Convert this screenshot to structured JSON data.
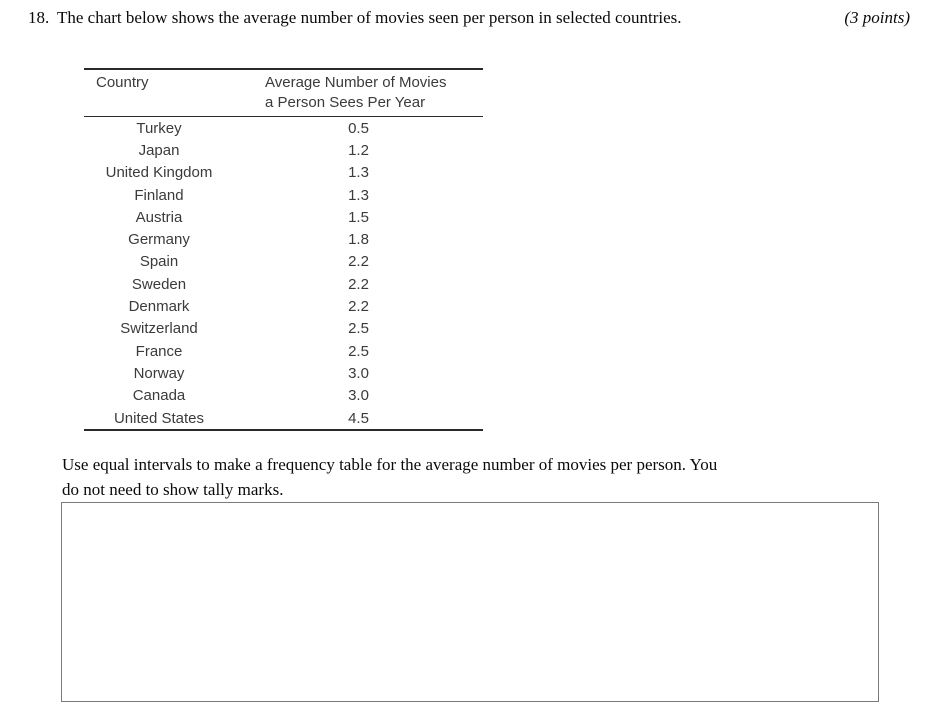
{
  "question": {
    "number": "18.",
    "text": "The chart below shows the average number of movies seen per person in selected countries.",
    "points_label": "(3 points)"
  },
  "movie_table": {
    "col1_header": "Country",
    "col2_header_line1": "Average Number of Movies",
    "col2_header_line2": "a Person Sees Per Year",
    "rows": [
      {
        "country": "Turkey",
        "value": "0.5"
      },
      {
        "country": "Japan",
        "value": "1.2"
      },
      {
        "country": "United Kingdom",
        "value": "1.3"
      },
      {
        "country": "Finland",
        "value": "1.3"
      },
      {
        "country": "Austria",
        "value": "1.5"
      },
      {
        "country": "Germany",
        "value": "1.8"
      },
      {
        "country": "Spain",
        "value": "2.2"
      },
      {
        "country": "Sweden",
        "value": "2.2"
      },
      {
        "country": "Denmark",
        "value": "2.2"
      },
      {
        "country": "Switzerland",
        "value": "2.5"
      },
      {
        "country": "France",
        "value": "2.5"
      },
      {
        "country": "Norway",
        "value": "3.0"
      },
      {
        "country": "Canada",
        "value": "3.0"
      },
      {
        "country": "United States",
        "value": "4.5"
      }
    ]
  },
  "instruction_text": "Use equal intervals to make a frequency table for the average number of movies per person. You do not need to show tally marks.",
  "answer_box": {
    "content": ""
  },
  "colors": {
    "table_text": "#3b3b3b",
    "table_line": "#2a2a2a",
    "box_border": "#7a7a7a",
    "body_text": "#0a0a0a"
  },
  "chart_data": {
    "type": "table",
    "title": "Average Number of Movies a Person Sees Per Year",
    "columns": [
      "Country",
      "Average Number of Movies a Person Sees Per Year"
    ],
    "categories": [
      "Turkey",
      "Japan",
      "United Kingdom",
      "Finland",
      "Austria",
      "Germany",
      "Spain",
      "Sweden",
      "Denmark",
      "Switzerland",
      "France",
      "Norway",
      "Canada",
      "United States"
    ],
    "values": [
      0.5,
      1.2,
      1.3,
      1.3,
      1.5,
      1.8,
      2.2,
      2.2,
      2.2,
      2.5,
      2.5,
      3.0,
      3.0,
      4.5
    ]
  }
}
